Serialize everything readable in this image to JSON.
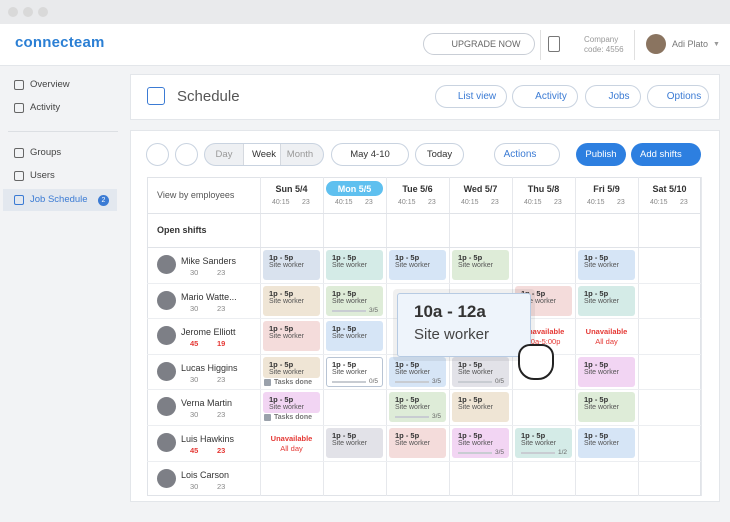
{
  "topbar": {
    "logo": "connecteam",
    "upgrade": "UPGRADE NOW",
    "company_label": "Company",
    "company_code": "code: 4556",
    "user": "Adi Plato"
  },
  "sidebar": {
    "items": [
      "Overview",
      "Activity",
      "Groups",
      "Users",
      "Job Schedule"
    ],
    "badge": "2"
  },
  "header": {
    "title": "Schedule",
    "buttons": [
      "List view",
      "Activity",
      "Jobs",
      "Options"
    ]
  },
  "toolbar": {
    "views": [
      "Day",
      "Week",
      "Month"
    ],
    "range": "May 4-10",
    "today": "Today",
    "actions": "Actions",
    "publish": "Publish",
    "add": "Add shifts"
  },
  "grid": {
    "view_by": "View by employees",
    "open_shifts": "Open shifts",
    "days": [
      {
        "label": "Sun 5/4",
        "hours": "40:15",
        "shifts": 23
      },
      {
        "label": "Mon 5/5",
        "hours": "40:15",
        "shifts": 23,
        "highlight": true
      },
      {
        "label": "Tue 5/6",
        "hours": "40:15",
        "shifts": 23
      },
      {
        "label": "Wed 5/7",
        "hours": "40:15",
        "shifts": 23
      },
      {
        "label": "Thu 5/8",
        "hours": "40:15",
        "shifts": 23
      },
      {
        "label": "Fri 5/9",
        "hours": "40:15",
        "shifts": 23
      },
      {
        "label": "Sat 5/10",
        "hours": "40:15",
        "shifts": 23
      }
    ],
    "employees": [
      {
        "name": "Mike Sanders",
        "hours": 30,
        "shifts": 23,
        "cells": [
          {
            "time": "1p - 5p",
            "role": "Site worker",
            "color": "#d9e2ee"
          },
          {
            "time": "1p - 5p",
            "role": "Site worker",
            "color": "#d4ebe7"
          },
          {
            "time": "1p - 5p",
            "role": "Site worker",
            "color": "#d6e5f6"
          },
          {
            "time": "1p - 5p",
            "role": "Site worker",
            "color": "#deecd8"
          },
          null,
          {
            "time": "1p - 5p",
            "role": "Site worker",
            "color": "#d6e5f6"
          },
          null
        ]
      },
      {
        "name": "Mario Watte...",
        "hours": 30,
        "shifts": 23,
        "cells": [
          {
            "time": "1p - 5p",
            "role": "Site worker",
            "color": "#efe5d5"
          },
          {
            "time": "1p - 5p",
            "role": "Site worker",
            "color": "#deecd8",
            "progress": "3/5"
          },
          null,
          null,
          {
            "time": "1p - 5p",
            "role": "Site worker",
            "color": "#f4dcdb"
          },
          {
            "time": "1p - 5p",
            "role": "Site worker",
            "color": "#d4ebe7"
          },
          null
        ]
      },
      {
        "name": "Jerome Elliott",
        "hours": 45,
        "shifts": 19,
        "stat_color": "#e53935",
        "cells": [
          {
            "time": "1p - 5p",
            "role": "Site worker",
            "color": "#f4dcdb"
          },
          {
            "time": "1p - 5p",
            "role": "Site worker",
            "color": "#d6e5f6"
          },
          null,
          null,
          {
            "unavailable": "Unavailable",
            "when": "10a-5:00p"
          },
          {
            "unavailable": "Unavailable",
            "when": "All day"
          },
          null
        ]
      },
      {
        "name": "Lucas Higgins",
        "hours": 30,
        "shifts": 23,
        "cells": [
          {
            "time": "1p - 5p",
            "role": "Site worker",
            "color": "#efe5d5",
            "note": "Tasks done"
          },
          {
            "time": "1p - 5p",
            "role": "Site worker",
            "color": "#ffffff",
            "progress": "0/5"
          },
          {
            "time": "1p - 5p",
            "role": "Site worker",
            "color": "#d6e5f6",
            "progress": "3/5"
          },
          {
            "time": "1p - 5p",
            "role": "Site worker",
            "color": "#e2e2e8",
            "progress": "0/5"
          },
          null,
          {
            "time": "1p - 5p",
            "role": "Site worker",
            "color": "#f2d5f3"
          },
          null
        ]
      },
      {
        "name": "Verna Martin",
        "hours": 30,
        "shifts": 23,
        "cells": [
          {
            "time": "1p - 5p",
            "role": "Site worker",
            "color": "#f2d5f3",
            "note": "Tasks done"
          },
          null,
          {
            "time": "1p - 5p",
            "role": "Site worker",
            "color": "#deecd8",
            "progress": "3/5"
          },
          {
            "time": "1p - 5p",
            "role": "Site worker",
            "color": "#efe5d5"
          },
          null,
          {
            "time": "1p - 5p",
            "role": "Site worker",
            "color": "#deecd8"
          },
          null
        ]
      },
      {
        "name": "Luis Hawkins",
        "hours": 45,
        "shifts": 23,
        "stat_color": "#e53935",
        "cells": [
          {
            "unavailable": "Unavailable",
            "when": "All day"
          },
          {
            "time": "1p - 5p",
            "role": "Site worker",
            "color": "#e2e2e8"
          },
          {
            "time": "1p - 5p",
            "role": "Site worker",
            "color": "#f4dcdb"
          },
          {
            "time": "1p - 5p",
            "role": "Site worker",
            "color": "#f2d5f3",
            "progress": "3/5"
          },
          {
            "time": "1p - 5p",
            "role": "Site worker",
            "color": "#d4ebe7",
            "progress": "1/2"
          },
          {
            "time": "1p - 5p",
            "role": "Site worker",
            "color": "#d6e5f6"
          },
          null
        ]
      },
      {
        "name": "Lois Carson",
        "hours": 30,
        "shifts": 23,
        "cells": [
          null,
          null,
          null,
          null,
          null,
          null,
          null
        ]
      }
    ]
  },
  "popup": {
    "time": "10a - 12a",
    "role": "Site worker"
  }
}
